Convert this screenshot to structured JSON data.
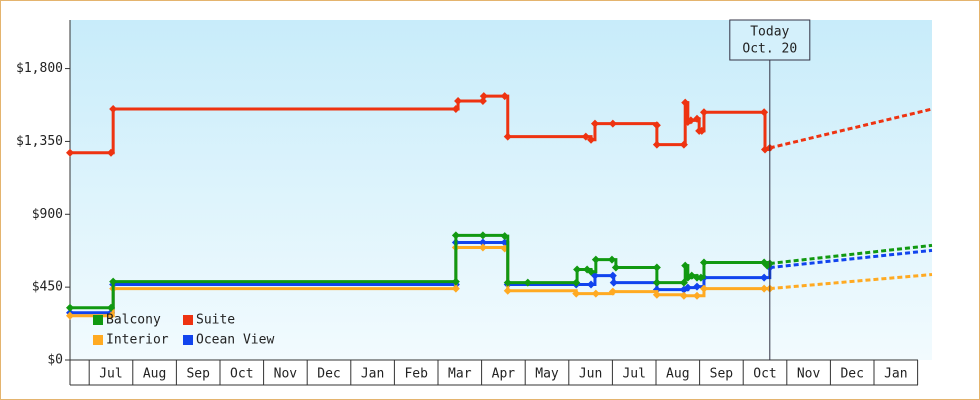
{
  "chart_data": {
    "type": "step-line",
    "xlim": [
      -0.44,
      19.33
    ],
    "ylim": [
      0,
      2100
    ],
    "xticks": [
      {
        "value": 0.5,
        "label": "Jul"
      },
      {
        "value": 1.5,
        "label": "Aug"
      },
      {
        "value": 2.5,
        "label": "Sep"
      },
      {
        "value": 3.5,
        "label": "Oct"
      },
      {
        "value": 4.5,
        "label": "Nov"
      },
      {
        "value": 5.5,
        "label": "Dec"
      },
      {
        "value": 6.5,
        "label": "Jan"
      },
      {
        "value": 7.5,
        "label": "Feb"
      },
      {
        "value": 8.5,
        "label": "Mar"
      },
      {
        "value": 9.5,
        "label": "Apr"
      },
      {
        "value": 10.5,
        "label": "May"
      },
      {
        "value": 11.5,
        "label": "Jun"
      },
      {
        "value": 12.5,
        "label": "Jul"
      },
      {
        "value": 13.5,
        "label": "Aug"
      },
      {
        "value": 14.5,
        "label": "Sep"
      },
      {
        "value": 15.5,
        "label": "Oct"
      },
      {
        "value": 16.5,
        "label": "Nov"
      },
      {
        "value": 17.5,
        "label": "Dec"
      },
      {
        "value": 18.5,
        "label": "Jan"
      }
    ],
    "yticks": [
      {
        "value": 0,
        "label": "$0"
      },
      {
        "value": 450,
        "label": "$450"
      },
      {
        "value": 900,
        "label": "$900"
      },
      {
        "value": 1350,
        "label": "$1,350"
      },
      {
        "value": 1800,
        "label": "$1,800"
      }
    ],
    "legend": "lower left",
    "annotation": {
      "x": 15.61,
      "lines": [
        "Today",
        "Oct. 20"
      ]
    },
    "series": [
      {
        "name": "Balcony",
        "color": "#119911",
        "x": [
          -0.44,
          0.5,
          0.55,
          8.41,
          8.41,
          9.03,
          9.53,
          9.6,
          10.06,
          11.17,
          11.19,
          11.42,
          11.51,
          11.62,
          11.99,
          12.08,
          13.02,
          13.02,
          13.64,
          13.67,
          13.73,
          13.82,
          13.94,
          14.03,
          14.1,
          15.48,
          15.55,
          15.61
        ],
        "values": [
          323,
          323,
          484,
          484,
          770,
          770,
          765,
          478,
          478,
          478,
          559,
          559,
          545,
          620,
          620,
          571,
          571,
          478,
          478,
          583,
          509,
          521,
          509,
          509,
          602,
          602,
          583,
          596
        ],
        "forecast": {
          "x": [
            15.61,
            19.33
          ],
          "values": [
            596,
            708
          ]
        }
      },
      {
        "name": "Suite",
        "color": "#ee3311",
        "x": [
          -0.44,
          0.5,
          0.55,
          8.41,
          8.46,
          9.03,
          9.05,
          9.53,
          9.6,
          11.39,
          11.51,
          11.6,
          12.01,
          13.02,
          13.02,
          13.64,
          13.67,
          13.73,
          13.8,
          13.94,
          13.99,
          14.05,
          14.1,
          15.48,
          15.5,
          15.61
        ],
        "values": [
          1280,
          1280,
          1550,
          1550,
          1600,
          1600,
          1630,
          1630,
          1380,
          1380,
          1360,
          1460,
          1460,
          1450,
          1330,
          1330,
          1590,
          1470,
          1480,
          1490,
          1415,
          1415,
          1530,
          1530,
          1300,
          1310
        ],
        "forecast": {
          "x": [
            15.61,
            19.33
          ],
          "values": [
            1310,
            1550
          ]
        }
      },
      {
        "name": "Interior",
        "color": "#ffaa22",
        "x": [
          -0.44,
          0.5,
          0.55,
          8.41,
          8.41,
          9.03,
          9.53,
          9.6,
          11.17,
          11.62,
          12.01,
          13.02,
          13.64,
          13.94,
          14.1,
          15.48,
          15.61
        ],
        "values": [
          273,
          273,
          441,
          441,
          695,
          695,
          689,
          428,
          410,
          410,
          422,
          403,
          397,
          397,
          441,
          441,
          441
        ],
        "forecast": {
          "x": [
            15.61,
            19.33
          ],
          "values": [
            441,
            528
          ]
        }
      },
      {
        "name": "Ocean View",
        "color": "#1144ee",
        "x": [
          -0.44,
          0.5,
          0.55,
          8.41,
          8.41,
          9.03,
          9.53,
          9.6,
          11.17,
          11.51,
          11.6,
          12.01,
          12.03,
          13.02,
          13.02,
          13.64,
          13.73,
          13.94,
          14.1,
          15.48,
          15.61
        ],
        "values": [
          292,
          292,
          466,
          466,
          726,
          726,
          726,
          466,
          466,
          466,
          521,
          521,
          478,
          478,
          435,
          435,
          447,
          453,
          509,
          509,
          571
        ],
        "forecast": {
          "x": [
            15.61,
            19.33
          ],
          "values": [
            571,
            677
          ]
        }
      }
    ]
  }
}
